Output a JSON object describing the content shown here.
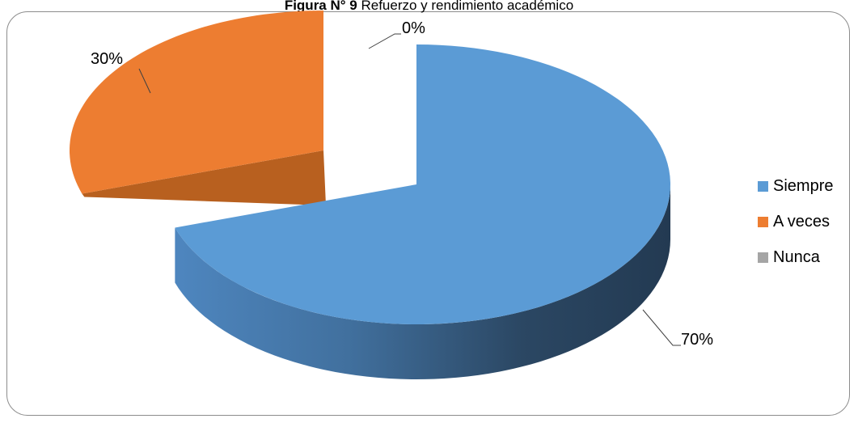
{
  "chart_data": {
    "type": "pie",
    "title_bold": "Figura N° 9",
    "title_rest": " Refuerzo y rendimiento académico",
    "categories": [
      "Siempre",
      "A veces",
      "Nunca"
    ],
    "values": [
      70,
      30,
      0
    ],
    "data_labels": [
      "70%",
      "30%",
      "0%"
    ],
    "colors": [
      "#5B9BD5",
      "#ED7D31",
      "#A5A5A5"
    ],
    "legend_position": "right",
    "exploded": true,
    "three_d": true
  }
}
